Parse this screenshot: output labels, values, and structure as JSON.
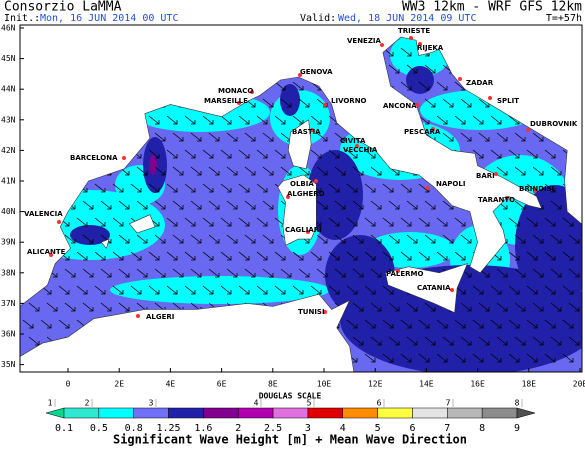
{
  "header": {
    "left_title": "Consorzio LaMMA",
    "right_title": "WW3 12km - WRF GFS 12km",
    "init_label": "Init.:",
    "init_value": "Mon, 16 JUN 2014 00 UTC",
    "valid_label": "Valid:",
    "valid_value": "Wed, 18 JUN 2014 09 UTC",
    "lead": "T=+57h"
  },
  "map": {
    "lat_labels": [
      "46N",
      "45N",
      "44N",
      "43N",
      "42N",
      "41N",
      "40N",
      "39N",
      "38N",
      "37N",
      "36N",
      "35N"
    ],
    "lon_labels": [
      "0",
      "2E",
      "4E",
      "6E",
      "8E",
      "10E",
      "12E",
      "14E",
      "16E",
      "18E",
      "20E"
    ],
    "cities": [
      "VENEZIA",
      "TRIESTE",
      "RIJEKA",
      "ZADAR",
      "SPLIT",
      "DUBROVNIK",
      "GENOVA",
      "MONACO",
      "MARSEILLE",
      "LIVORNO",
      "ANCONA",
      "BASTIA",
      "CIVITA",
      "VECCHIA",
      "PESCARA",
      "BARCELONA",
      "OLBIA",
      "ALGHERO",
      "NAPOLI",
      "BARI",
      "BRINDISI",
      "TARANTO",
      "VALENCIA",
      "CAGLIARI",
      "ALICANTE",
      "PALERMO",
      "CATANIA",
      "TUNISI",
      "ALGERI"
    ]
  },
  "legend": {
    "scale_title": "DOUGLAS SCALE",
    "douglas": [
      1,
      2,
      3,
      4,
      5,
      6,
      7,
      8
    ],
    "ticks": [
      0.1,
      0.5,
      0.8,
      1.25,
      1.6,
      2,
      2.5,
      3,
      4,
      5,
      6,
      7,
      8,
      9
    ],
    "colors": [
      "#00d890",
      "#30e8d0",
      "#00ffff",
      "#7070f8",
      "#2020a8",
      "#800090",
      "#b000b0",
      "#e070e0",
      "#e00000",
      "#ff8c00",
      "#ffff40",
      "#e4e4e4",
      "#b8b8b8",
      "#8c8c8c",
      "#505050"
    ],
    "caption": "Significant Wave Height [m] + Mean Wave Direction"
  }
}
